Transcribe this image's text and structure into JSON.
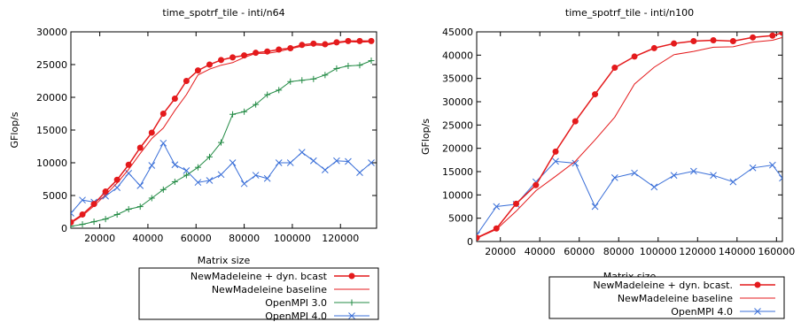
{
  "chart_data": [
    {
      "type": "line",
      "title": "time_spotrf_tile - inti/n64",
      "xlabel": "Matrix size",
      "ylabel": "GFlop/s",
      "xlim": [
        8000,
        135000
      ],
      "ylim": [
        0,
        30000
      ],
      "xticks": [
        20000,
        40000,
        60000,
        80000,
        100000,
        120000
      ],
      "yticks": [
        0,
        5000,
        10000,
        15000,
        20000,
        25000,
        30000
      ],
      "grid": false,
      "legend_position": "below plot, right",
      "series": [
        {
          "name": "NewMadeleine + dyn. bcast",
          "color": "#e41a1c",
          "marker": "circle",
          "x": [
            8000,
            12800,
            17600,
            22400,
            27200,
            32000,
            36800,
            41600,
            46400,
            51200,
            56000,
            60800,
            65600,
            70400,
            75200,
            80000,
            84800,
            89600,
            94400,
            99200,
            104000,
            108800,
            113600,
            118400,
            123200,
            128000,
            132800
          ],
          "y": [
            900,
            2100,
            3700,
            5600,
            7400,
            9700,
            12300,
            14600,
            17500,
            19800,
            22500,
            24100,
            25000,
            25700,
            26100,
            26400,
            26800,
            27000,
            27300,
            27500,
            28000,
            28200,
            28100,
            28400,
            28600,
            28600,
            28600
          ]
        },
        {
          "name": "NewMadeleine baseline",
          "color": "#e41a1c",
          "marker": "none",
          "x": [
            8000,
            12800,
            17600,
            22400,
            27200,
            32000,
            36800,
            41600,
            46400,
            51200,
            56000,
            60800,
            65600,
            70400,
            75200,
            80000,
            84800,
            89600,
            94400,
            99200,
            104000,
            108800,
            113600,
            118400,
            123200,
            128000,
            132800
          ],
          "y": [
            800,
            1900,
            3400,
            5100,
            6900,
            9000,
            11400,
            13700,
            15300,
            18000,
            20400,
            23400,
            24300,
            24900,
            25300,
            26100,
            26700,
            26700,
            27000,
            27400,
            27800,
            28000,
            27900,
            28300,
            28500,
            28400,
            28500
          ]
        },
        {
          "name": "OpenMPI 3.0",
          "color": "#238b45",
          "marker": "plus",
          "x": [
            8000,
            12800,
            17600,
            22400,
            27200,
            32000,
            36800,
            41600,
            46400,
            51200,
            56000,
            60800,
            65600,
            70400,
            75200,
            80000,
            84800,
            89600,
            94400,
            99200,
            104000,
            108800,
            113600,
            118400,
            123200,
            128000,
            132800
          ],
          "y": [
            300,
            600,
            1000,
            1400,
            2100,
            2900,
            3300,
            4600,
            5900,
            7100,
            8100,
            9300,
            10900,
            13100,
            17400,
            17800,
            18900,
            20400,
            21100,
            22400,
            22600,
            22800,
            23400,
            24400,
            24800,
            24900,
            25600
          ]
        },
        {
          "name": "OpenMPI 4.0",
          "color": "#3a6fd8",
          "marker": "cross",
          "x": [
            8000,
            12800,
            17600,
            22400,
            27200,
            32000,
            36800,
            41600,
            46400,
            51200,
            56000,
            60800,
            65600,
            70400,
            75200,
            80000,
            84800,
            89600,
            94400,
            99200,
            104000,
            108800,
            113600,
            118400,
            123200,
            128000,
            132800
          ],
          "y": [
            2300,
            4300,
            4000,
            4900,
            6200,
            8400,
            6500,
            9600,
            13000,
            9700,
            8800,
            7000,
            7300,
            8200,
            10000,
            6800,
            8100,
            7600,
            10000,
            10000,
            11600,
            10300,
            8900,
            10300,
            10200,
            8500,
            10000
          ]
        }
      ]
    },
    {
      "type": "line",
      "title": "time_spotrf_tile - inti/n100",
      "xlabel": "Matrix size",
      "ylabel": "GFlop/s",
      "xlim": [
        8000,
        163000
      ],
      "ylim": [
        0,
        45000
      ],
      "xticks": [
        20000,
        40000,
        60000,
        80000,
        100000,
        120000,
        140000,
        160000
      ],
      "yticks": [
        0,
        5000,
        10000,
        15000,
        20000,
        25000,
        30000,
        35000,
        40000,
        45000
      ],
      "grid": false,
      "legend_position": "below plot, right",
      "series": [
        {
          "name": "NewMadeleine + dyn. bcast.",
          "color": "#e41a1c",
          "marker": "circle",
          "x": [
            8000,
            18000,
            28000,
            38000,
            48000,
            58000,
            68000,
            78000,
            88000,
            98000,
            108000,
            118000,
            128000,
            138000,
            148000,
            158000,
            163000
          ],
          "y": [
            800,
            2800,
            8100,
            12100,
            19300,
            25800,
            31600,
            37300,
            39700,
            41500,
            42500,
            43000,
            43200,
            43000,
            43800,
            44200,
            44800
          ]
        },
        {
          "name": "NewMadeleine baseline",
          "color": "#e41a1c",
          "marker": "none",
          "x": [
            8000,
            18000,
            28000,
            38000,
            48000,
            58000,
            68000,
            78000,
            88000,
            98000,
            108000,
            118000,
            128000,
            138000,
            148000,
            158000,
            163000
          ],
          "y": [
            700,
            2600,
            6500,
            10900,
            14000,
            17200,
            21800,
            26700,
            33800,
            37400,
            40100,
            40800,
            41700,
            41800,
            42800,
            43200,
            43800
          ]
        },
        {
          "name": "OpenMPI 4.0",
          "color": "#3a6fd8",
          "marker": "cross",
          "x": [
            8000,
            18000,
            28000,
            38000,
            48000,
            58000,
            68000,
            78000,
            88000,
            98000,
            108000,
            118000,
            128000,
            138000,
            148000,
            158000,
            163000
          ],
          "y": [
            1400,
            7500,
            8000,
            12800,
            17200,
            16800,
            7500,
            13700,
            14700,
            11700,
            14200,
            15100,
            14200,
            12800,
            15800,
            16400,
            13600
          ]
        }
      ]
    }
  ]
}
